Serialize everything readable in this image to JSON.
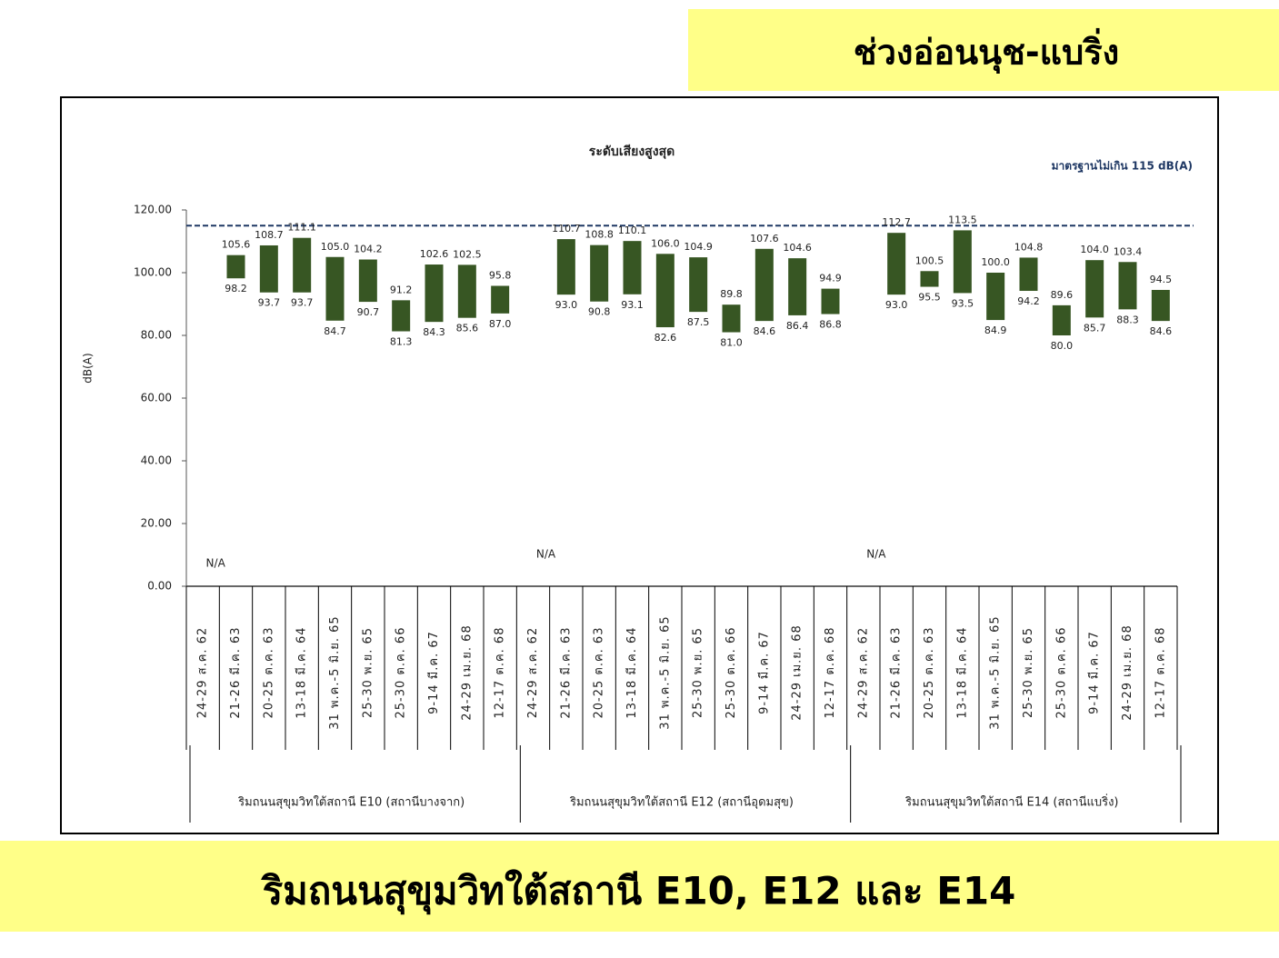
{
  "header": "ช่วงอ่อนนุช-แบริ่ง",
  "footer": "ริมถนนสุขุมวิทใต้สถานี E10, E12 และ E14",
  "chart_data": {
    "type": "range-bar",
    "title": "ระดับเสียงสูงสุด",
    "y_label": "dB(A)",
    "annotation": "มาตรฐานไม่เกิน 115 dB(A)",
    "threshold": 115,
    "color": "#375623",
    "ylim": [
      0,
      120
    ],
    "yticks": [
      {
        "value": 0,
        "label": "0.00"
      },
      {
        "value": 20,
        "label": "20.00"
      },
      {
        "value": 40,
        "label": "40.00"
      },
      {
        "value": 60,
        "label": "60.00"
      },
      {
        "value": 80,
        "label": "80.00"
      },
      {
        "value": 100,
        "label": "100.00"
      },
      {
        "value": 120,
        "label": "120.00"
      }
    ],
    "groups": [
      {
        "label": "ริมถนนสุขุมวิทใต้สถานี E10 (สถานีบางจาก)",
        "na": "N/A",
        "categories": [
          "24-29 ส.ค. 62",
          "21-26 มี.ค. 63",
          "20-25 ต.ค. 63",
          "13-18 มี.ค. 64",
          "31 พ.ค.-5 มิ.ย. 65",
          "25-30 พ.ย. 65",
          "25-30 ต.ค. 66",
          "9-14 มี.ค. 67",
          "24-29 เม.ย. 68",
          "12-17 ต.ค. 68"
        ],
        "high": {
          "values": [
            null,
            105.6,
            108.7,
            111.1,
            105.0,
            104.2,
            91.2,
            102.6,
            102.5,
            95.8
          ],
          "value_labels": [
            null,
            "105.6",
            "108.7",
            "111.1",
            "105.0",
            "104.2",
            "91.2",
            "102.6",
            "102.5",
            "95.8"
          ]
        },
        "low": {
          "values": [
            null,
            98.2,
            93.7,
            93.7,
            84.7,
            90.7,
            81.3,
            84.3,
            85.6,
            87.0
          ],
          "value_labels": [
            null,
            "98.2",
            "93.7",
            "93.7",
            "84.7",
            "90.7",
            "81.3",
            "84.3",
            "85.6",
            "87.0"
          ]
        }
      },
      {
        "label": "ริมถนนสุขุมวิทใต้สถานี E12 (สถานีอุดมสุข)",
        "na": "N/A",
        "categories": [
          "24-29 ส.ค. 62",
          "21-26 มี.ค. 63",
          "20-25 ต.ค. 63",
          "13-18 มี.ค. 64",
          "31 พ.ค.-5 มิ.ย. 65",
          "25-30 พ.ย. 65",
          "25-30 ต.ค. 66",
          "9-14 มี.ค. 67",
          "24-29 เม.ย. 68",
          "12-17 ต.ค. 68"
        ],
        "high": {
          "values": [
            null,
            110.7,
            108.8,
            110.1,
            106.0,
            104.9,
            89.8,
            107.6,
            104.6,
            94.9
          ],
          "value_labels": [
            null,
            "110.7",
            "108.8",
            "110.1",
            "106.0",
            "104.9",
            "89.8",
            "107.6",
            "104.6",
            "94.9"
          ]
        },
        "low": {
          "values": [
            null,
            93.0,
            90.8,
            93.1,
            82.6,
            87.5,
            81.0,
            84.6,
            86.4,
            86.8
          ],
          "value_labels": [
            null,
            "93.0",
            "90.8",
            "93.1",
            "82.6",
            "87.5",
            "81.0",
            "84.6",
            "86.4",
            "86.8"
          ]
        }
      },
      {
        "label": "ริมถนนสุขุมวิทใต้สถานี E14 (สถานีแบริ่ง)",
        "na": "N/A",
        "categories": [
          "24-29 ส.ค. 62",
          "21-26 มี.ค. 63",
          "20-25 ต.ค. 63",
          "13-18 มี.ค. 64",
          "31 พ.ค.-5 มิ.ย. 65",
          "25-30 พ.ย. 65",
          "25-30 ต.ค. 66",
          "9-14 มี.ค. 67",
          "24-29 เม.ย. 68",
          "12-17 ต.ค. 68"
        ],
        "high": {
          "values": [
            null,
            112.7,
            100.5,
            113.5,
            100.0,
            104.8,
            89.6,
            104.0,
            103.4,
            94.5
          ],
          "value_labels": [
            null,
            "112.7",
            "100.5",
            "113.5",
            "100.0",
            "104.8",
            "89.6",
            "104.0",
            "103.4",
            "94.5"
          ]
        },
        "low": {
          "values": [
            null,
            93.0,
            95.5,
            93.5,
            84.9,
            94.2,
            80.0,
            85.7,
            88.3,
            84.6
          ],
          "value_labels": [
            null,
            "93.0",
            "95.5",
            "93.5",
            "84.9",
            "94.2",
            "80.0",
            "85.7",
            "88.3",
            "84.6"
          ]
        }
      }
    ]
  }
}
